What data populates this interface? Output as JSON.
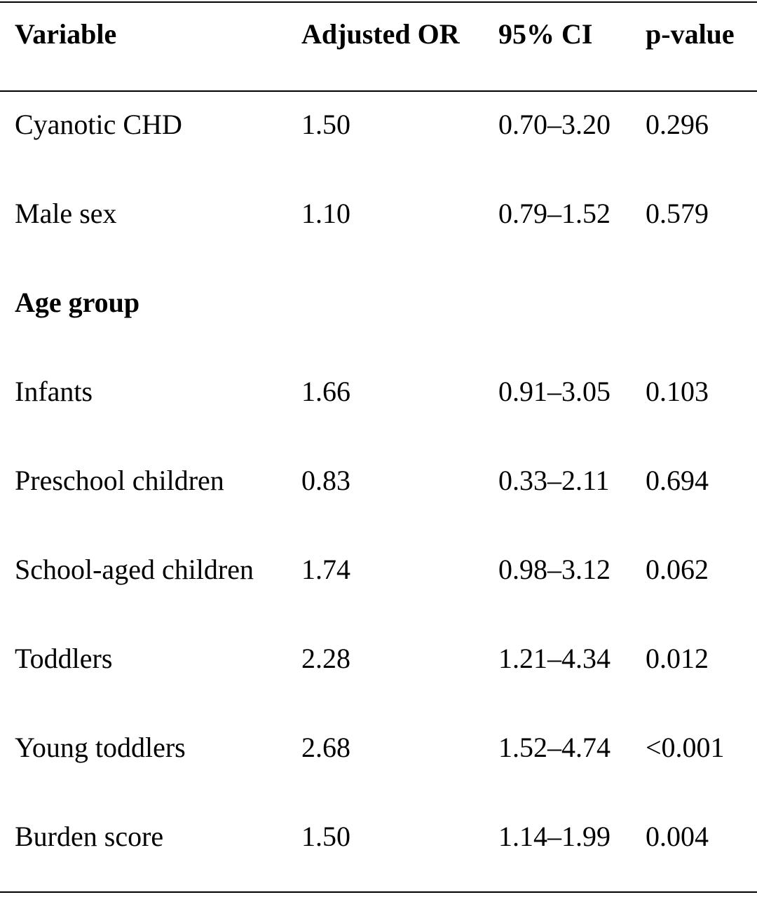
{
  "table": {
    "headers": [
      "Variable",
      "Adjusted OR",
      "95% CI",
      "p-value"
    ],
    "rows": [
      {
        "variable": "Cyanotic CHD",
        "or": "1.50",
        "ci": "0.70–3.20",
        "p": "0.296"
      },
      {
        "variable": "Male sex",
        "or": "1.10",
        "ci": "0.79–1.52",
        "p": "0.579"
      },
      {
        "variable": "Age group",
        "or": "",
        "ci": "",
        "p": ""
      },
      {
        "variable": "Infants",
        "or": "1.66",
        "ci": "0.91–3.05",
        "p": "0.103"
      },
      {
        "variable": "Preschool children",
        "or": "0.83",
        "ci": "0.33–2.11",
        "p": "0.694"
      },
      {
        "variable": "School-aged children",
        "or": "1.74",
        "ci": "0.98–3.12",
        "p": "0.062"
      },
      {
        "variable": "Toddlers",
        "or": "2.28",
        "ci": "1.21–4.34",
        "p": "0.012"
      },
      {
        "variable": "Young toddlers",
        "or": "2.68",
        "ci": "1.52–4.74",
        "p": "<0.001"
      },
      {
        "variable": "Burden score",
        "or": "1.50",
        "ci": "1.14–1.99",
        "p": "0.004"
      }
    ]
  }
}
